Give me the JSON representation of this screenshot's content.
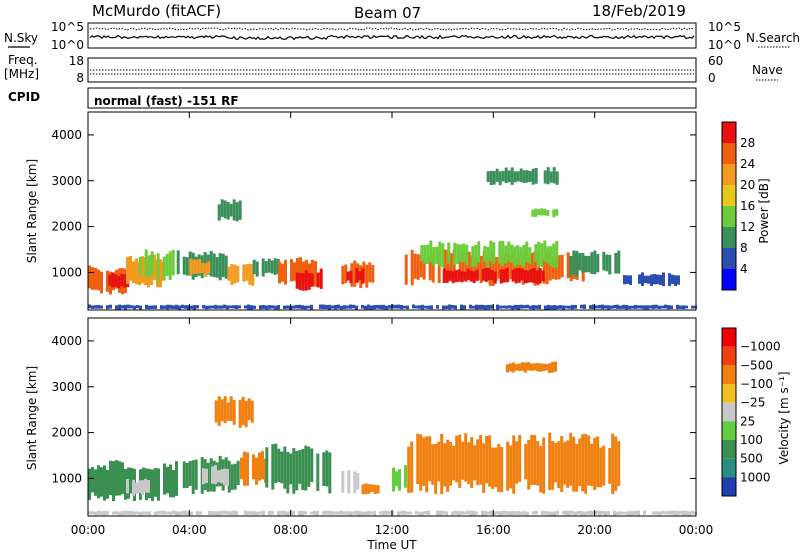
{
  "header": {
    "station": "McMurdo (fitACF)",
    "beam": "Beam 07",
    "date": "18/Feb/2019"
  },
  "top_panels": {
    "nsky_label": "N.Sky",
    "nsearch_label": "N.Search",
    "noise_ticks": [
      "10^5",
      "10^0"
    ],
    "freq_label_top": "Freq.",
    "freq_label_unit": "[MHz]",
    "freq_ticks": [
      "18",
      "8"
    ],
    "nave_label": "Nave",
    "nave_ticks": [
      "60",
      "0"
    ],
    "cpid_label": "CPID",
    "cpid_text": "normal (fast) -151 RF"
  },
  "chart_data": [
    {
      "type": "heatmap",
      "name": "power",
      "ylabel": "Slant Range [km]",
      "xlabel": "Time UT",
      "x_ticks": [
        "00:00",
        "04:00",
        "08:00",
        "12:00",
        "16:00",
        "20:00",
        "00:00"
      ],
      "x_range_hours": [
        0,
        24
      ],
      "y_ticks": [
        1000,
        2000,
        3000,
        4000
      ],
      "ylim": [
        180,
        4500
      ],
      "colorbar_label": "Power [dB]",
      "colorbar_ticks": [
        "4",
        "8",
        "12",
        "16",
        "20",
        "24",
        "28"
      ],
      "colorbar_colors": [
        "#0000ff",
        "#2a4fb0",
        "#3a8f5a",
        "#6ccc3a",
        "#e8c81a",
        "#f59a20",
        "#f06010",
        "#e81010"
      ],
      "regions": [
        {
          "t0": 0.0,
          "t1": 1.5,
          "r0": 500,
          "r1": 1150,
          "c": "#f06010"
        },
        {
          "t0": 0.8,
          "t1": 1.6,
          "r0": 650,
          "r1": 1000,
          "c": "#e81010"
        },
        {
          "t0": 1.5,
          "t1": 3.0,
          "r0": 650,
          "r1": 1400,
          "c": "#f59a20"
        },
        {
          "t0": 2.0,
          "t1": 3.5,
          "r0": 800,
          "r1": 1500,
          "c": "#6ccc3a"
        },
        {
          "t0": 3.5,
          "t1": 5.5,
          "r0": 800,
          "r1": 1500,
          "c": "#3a8f5a"
        },
        {
          "t0": 4.0,
          "t1": 5.0,
          "r0": 900,
          "r1": 1300,
          "c": "#f59a20"
        },
        {
          "t0": 5.5,
          "t1": 6.5,
          "r0": 700,
          "r1": 1200,
          "c": "#f59a20"
        },
        {
          "t0": 6.5,
          "t1": 7.5,
          "r0": 900,
          "r1": 1350,
          "c": "#3a8f5a"
        },
        {
          "t0": 7.5,
          "t1": 9.0,
          "r0": 650,
          "r1": 1350,
          "c": "#f06010"
        },
        {
          "t0": 8.2,
          "t1": 9.2,
          "r0": 600,
          "r1": 1100,
          "c": "#e81010"
        },
        {
          "t0": 10.0,
          "t1": 11.2,
          "r0": 650,
          "r1": 1300,
          "c": "#f06010"
        },
        {
          "t0": 10.2,
          "t1": 10.8,
          "r0": 750,
          "r1": 1100,
          "c": "#e81010"
        },
        {
          "t0": 12.5,
          "t1": 19.5,
          "r0": 700,
          "r1": 1500,
          "c": "#f06010"
        },
        {
          "t0": 13.0,
          "t1": 18.5,
          "r0": 1100,
          "r1": 1700,
          "c": "#6ccc3a"
        },
        {
          "t0": 14.0,
          "t1": 18.0,
          "r0": 750,
          "r1": 1100,
          "c": "#e81010"
        },
        {
          "t0": 19.0,
          "t1": 21.0,
          "r0": 900,
          "r1": 1500,
          "c": "#3a8f5a"
        },
        {
          "t0": 21.0,
          "t1": 23.5,
          "r0": 700,
          "r1": 1000,
          "c": "#2a4fb0"
        },
        {
          "t0": 5.0,
          "t1": 6.0,
          "r0": 2100,
          "r1": 2600,
          "c": "#3a8f5a"
        },
        {
          "t0": 15.5,
          "t1": 18.5,
          "r0": 2900,
          "r1": 3300,
          "c": "#3a8f5a"
        },
        {
          "t0": 17.5,
          "t1": 18.5,
          "r0": 2200,
          "r1": 2400,
          "c": "#6ccc3a"
        },
        {
          "t0": 0.0,
          "t1": 24.0,
          "r0": 190,
          "r1": 300,
          "c": "#2a4fb0"
        }
      ]
    },
    {
      "type": "heatmap",
      "name": "velocity",
      "ylabel": "Slant Range [km]",
      "xlabel": "Time UT",
      "x_ticks": [
        "00:00",
        "04:00",
        "08:00",
        "12:00",
        "16:00",
        "20:00",
        "00:00"
      ],
      "x_range_hours": [
        0,
        24
      ],
      "y_ticks": [
        1000,
        2000,
        3000,
        4000
      ],
      "ylim": [
        180,
        4500
      ],
      "colorbar_label": "Velocity [m s⁻¹]",
      "colorbar_ticks": [
        "1000",
        "500",
        "100",
        "25",
        "−25",
        "−100",
        "−500",
        "−1000"
      ],
      "colorbar_colors": [
        "#2040b0",
        "#2a8f80",
        "#3a9050",
        "#60d040",
        "#c8c8c8",
        "#f0c020",
        "#f08010",
        "#f04010",
        "#f00000"
      ],
      "regions": [
        {
          "t0": 0.0,
          "t1": 3.5,
          "r0": 500,
          "r1": 1400,
          "c": "#3a9050"
        },
        {
          "t0": 1.5,
          "t1": 2.5,
          "r0": 600,
          "r1": 1000,
          "c": "#c8c8c8"
        },
        {
          "t0": 3.5,
          "t1": 6.0,
          "r0": 650,
          "r1": 1500,
          "c": "#3a9050"
        },
        {
          "t0": 4.5,
          "t1": 5.5,
          "r0": 800,
          "r1": 1300,
          "c": "#c8c8c8"
        },
        {
          "t0": 6.0,
          "t1": 7.0,
          "r0": 800,
          "r1": 1600,
          "c": "#f08010"
        },
        {
          "t0": 7.0,
          "t1": 9.5,
          "r0": 650,
          "r1": 1800,
          "c": "#3a9050"
        },
        {
          "t0": 10.0,
          "t1": 10.8,
          "r0": 650,
          "r1": 1200,
          "c": "#c8c8c8"
        },
        {
          "t0": 10.8,
          "t1": 11.5,
          "r0": 650,
          "r1": 900,
          "c": "#f08010"
        },
        {
          "t0": 12.0,
          "t1": 12.6,
          "r0": 700,
          "r1": 1300,
          "c": "#60d040"
        },
        {
          "t0": 12.6,
          "t1": 21.0,
          "r0": 650,
          "r1": 2000,
          "c": "#f08010"
        },
        {
          "t0": 5.0,
          "t1": 6.5,
          "r0": 2100,
          "r1": 2800,
          "c": "#f08010"
        },
        {
          "t0": 16.5,
          "t1": 18.5,
          "r0": 3300,
          "r1": 3550,
          "c": "#f08010"
        },
        {
          "t0": 0.0,
          "t1": 24.0,
          "r0": 190,
          "r1": 300,
          "c": "#c8c8c8"
        }
      ]
    }
  ]
}
